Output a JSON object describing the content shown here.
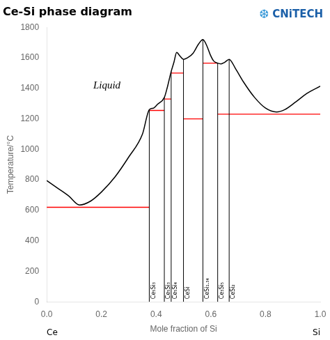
{
  "chart_data": {
    "type": "line",
    "title": "Ce-Si phase diagram",
    "xlabel": "Mole fraction of Si",
    "ylabel": "Temperature/°C",
    "xlim": [
      0,
      1.0
    ],
    "ylim": [
      0,
      1800
    ],
    "xticks": [
      {
        "value": 0,
        "label": "0.0"
      },
      {
        "value": 0.2,
        "label": "0.2"
      },
      {
        "value": 0.4,
        "label": "0.4"
      },
      {
        "value": 0.6,
        "label": "0.6"
      },
      {
        "value": 0.8,
        "label": "0.8"
      },
      {
        "value": 1.0,
        "label": "1.0"
      }
    ],
    "yticks": [
      0,
      200,
      400,
      600,
      800,
      1000,
      1200,
      1400,
      1600,
      1800
    ],
    "grid": false,
    "series": [
      {
        "type": "line",
        "color": "#000000",
        "x": [
          0.0,
          0.04,
          0.08,
          0.12,
          0.16,
          0.2,
          0.25,
          0.3,
          0.35,
          0.375,
          0.39,
          0.405,
          0.43,
          0.44,
          0.455,
          0.465,
          0.475,
          0.488,
          0.5,
          0.515,
          0.535,
          0.555,
          0.571,
          0.585,
          0.598,
          0.61,
          0.625,
          0.637,
          0.65,
          0.667,
          0.69,
          0.72,
          0.76,
          0.8,
          0.84,
          0.87,
          0.91,
          0.95,
          1.0
        ],
        "values": [
          795,
          745,
          695,
          635,
          660,
          720,
          820,
          950,
          1100,
          1260,
          1270,
          1295,
          1340,
          1400,
          1510,
          1570,
          1635,
          1610,
          1590,
          1600,
          1630,
          1690,
          1720,
          1680,
          1620,
          1580,
          1565,
          1560,
          1570,
          1590,
          1530,
          1440,
          1340,
          1270,
          1245,
          1260,
          1310,
          1365,
          1414
        ]
      },
      {
        "type": "hlines",
        "color": "#ff0000",
        "segments": [
          {
            "x1": 0.0,
            "x2": 0.375,
            "y": 620
          },
          {
            "x1": 0.375,
            "x2": 0.43,
            "y": 1255
          },
          {
            "x1": 0.43,
            "x2": 0.455,
            "y": 1330
          },
          {
            "x1": 0.455,
            "x2": 0.5,
            "y": 1500
          },
          {
            "x1": 0.5,
            "x2": 0.571,
            "y": 1200
          },
          {
            "x1": 0.571,
            "x2": 0.625,
            "y": 1565
          },
          {
            "x1": 0.625,
            "x2": 1.0,
            "y": 1230
          }
        ]
      },
      {
        "type": "vlines",
        "color": "#000000",
        "segments": [
          {
            "x": 0.375,
            "y1": 0,
            "y2": 1260,
            "label": "Ce₅Si₃"
          },
          {
            "x": 0.43,
            "y1": 0,
            "y2": 1340,
            "label": "Ce₅Si₃"
          },
          {
            "x": 0.455,
            "y1": 0,
            "y2": 1510,
            "label": "Ce₅Si₄"
          },
          {
            "x": 0.5,
            "y1": 0,
            "y2": 1590,
            "label": "CeSi"
          },
          {
            "x": 0.571,
            "y1": 0,
            "y2": 1720,
            "label": "CeSi₁.₃₄"
          },
          {
            "x": 0.625,
            "y1": 0,
            "y2": 1565,
            "label": "Ce₃Si₅"
          },
          {
            "x": 0.667,
            "y1": 0,
            "y2": 1590,
            "label": "CeSi₂"
          }
        ]
      }
    ],
    "annotations": [
      {
        "text": "Liquid",
        "x": 0.17,
        "y": 1400
      },
      {
        "text": "Ce",
        "x": 0
      },
      {
        "text": "Si",
        "x": 1.0
      }
    ],
    "branding": [
      {
        "text": "❆",
        "color": "#3a9ad9"
      },
      {
        "text": "CNiTECH",
        "color": "#1a5fa8"
      }
    ]
  }
}
